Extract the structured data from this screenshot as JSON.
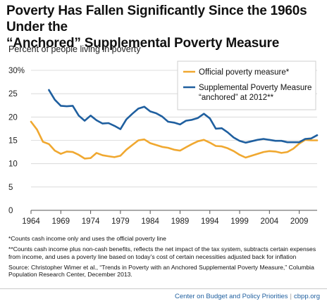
{
  "header": {
    "title_line1": "Poverty Has Fallen Significantly Since the 1960s Under the",
    "title_line2": "“Anchored” Supplemental Poverty Measure",
    "subtitle": "Percent of people living in poverty"
  },
  "chart_data": {
    "type": "line",
    "title": "Poverty Has Fallen Significantly Since the 1960s Under the “Anchored” Supplemental Poverty Measure",
    "ylabel": "Percent of people living in poverty",
    "xlim": [
      1964,
      2012
    ],
    "ylim": [
      0,
      30
    ],
    "x_ticks": [
      "1964",
      "1969",
      "1974",
      "1979",
      "1984",
      "1989",
      "1994",
      "1999",
      "2004",
      "2009"
    ],
    "y_ticks": [
      "0",
      "5",
      "10",
      "15",
      "20",
      "25",
      "30%"
    ],
    "grid": true,
    "legend_position": "top-right",
    "series": [
      {
        "name": "Official poverty measure*",
        "color": "#f0a830",
        "x": [
          1964,
          1965,
          1966,
          1967,
          1968,
          1969,
          1970,
          1971,
          1972,
          1973,
          1974,
          1975,
          1976,
          1977,
          1978,
          1979,
          1980,
          1981,
          1982,
          1983,
          1984,
          1985,
          1986,
          1987,
          1988,
          1989,
          1990,
          1991,
          1992,
          1993,
          1994,
          1995,
          1996,
          1997,
          1998,
          1999,
          2000,
          2001,
          2002,
          2003,
          2004,
          2005,
          2006,
          2007,
          2008,
          2009,
          2010,
          2011,
          2012
        ],
        "values": [
          19.0,
          17.3,
          14.7,
          14.2,
          12.8,
          12.1,
          12.6,
          12.5,
          11.9,
          11.1,
          11.2,
          12.3,
          11.8,
          11.6,
          11.4,
          11.7,
          13.0,
          14.0,
          15.0,
          15.2,
          14.4,
          14.0,
          13.6,
          13.4,
          13.0,
          12.8,
          13.5,
          14.2,
          14.8,
          15.1,
          14.5,
          13.8,
          13.7,
          13.3,
          12.7,
          11.9,
          11.3,
          11.7,
          12.1,
          12.5,
          12.7,
          12.6,
          12.3,
          12.5,
          13.2,
          14.3,
          15.1,
          15.0,
          15.0
        ]
      },
      {
        "name": "Supplemental Poverty Measure “anchored” at 2012**",
        "color": "#1f5f9f",
        "x": [
          1967,
          1968,
          1969,
          1970,
          1971,
          1972,
          1973,
          1974,
          1975,
          1976,
          1977,
          1978,
          1979,
          1980,
          1981,
          1982,
          1983,
          1984,
          1985,
          1986,
          1987,
          1988,
          1989,
          1990,
          1991,
          1992,
          1993,
          1994,
          1995,
          1996,
          1997,
          1998,
          1999,
          2000,
          2001,
          2002,
          2003,
          2004,
          2005,
          2006,
          2007,
          2008,
          2009,
          2010,
          2011,
          2012
        ],
        "values": [
          25.8,
          23.7,
          22.4,
          22.3,
          22.4,
          20.3,
          19.2,
          20.3,
          19.3,
          18.6,
          18.7,
          18.1,
          17.4,
          19.5,
          20.7,
          21.8,
          22.2,
          21.2,
          20.8,
          20.1,
          19.0,
          18.8,
          18.4,
          19.2,
          19.4,
          19.8,
          20.7,
          19.7,
          17.5,
          17.6,
          16.7,
          15.6,
          14.9,
          14.5,
          14.8,
          15.1,
          15.3,
          15.1,
          14.9,
          14.9,
          14.6,
          14.6,
          14.6,
          15.3,
          15.4,
          16.1
        ]
      }
    ]
  },
  "notes": {
    "note1": "*Counts cash income only and uses the official poverty line",
    "note2": "**Counts cash income plus non-cash benefits, reflects the net impact of the tax system, subtracts certain expenses from income, and uses a poverty line based on today’s cost of certain necessities adjusted back for inflation",
    "source": "Source: Christopher Wimer et al., “Trends in Poverty with an Anchored Supplemental Poverty Measure,” Columbia Population Research Center, December 2013."
  },
  "footer": {
    "org": "Center on Budget and Policy Priorities",
    "separator": "|",
    "site": "cbpp.org"
  }
}
